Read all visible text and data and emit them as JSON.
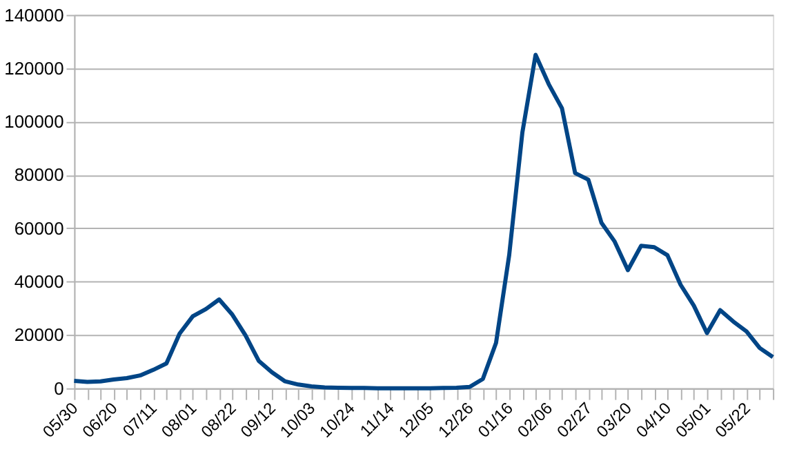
{
  "chart_data": {
    "type": "line",
    "categories": [
      "05/30",
      null,
      null,
      "06/20",
      null,
      null,
      "07/11",
      null,
      null,
      "08/01",
      null,
      null,
      "08/22",
      null,
      null,
      "09/12",
      null,
      null,
      "10/03",
      null,
      null,
      "10/24",
      null,
      null,
      "11/14",
      null,
      null,
      "12/05",
      null,
      null,
      "12/26",
      null,
      null,
      "01/16",
      null,
      null,
      "02/06",
      null,
      null,
      "02/27",
      null,
      null,
      "03/20",
      null,
      null,
      "04/10",
      null,
      null,
      "05/01",
      null,
      null,
      "05/22",
      null,
      null
    ],
    "series": [
      {
        "color": "#004586",
        "values": [
          2800,
          2400,
          2600,
          3300,
          3800,
          4800,
          6900,
          9300,
          20500,
          27000,
          29700,
          33300,
          27600,
          19800,
          10300,
          6000,
          2600,
          1400,
          700,
          300,
          200,
          100,
          100,
          0,
          0,
          0,
          0,
          0,
          100,
          200,
          500,
          3500,
          17000,
          50000,
          96000,
          125000,
          114000,
          105000,
          80700,
          78200,
          62000,
          55000,
          44300,
          53400,
          52900,
          49900,
          38800,
          31000,
          20700,
          29300,
          25000,
          21300,
          15100,
          11700
        ]
      }
    ],
    "ylim": [
      0,
      140000
    ],
    "yticks": [
      0,
      20000,
      40000,
      60000,
      80000,
      100000,
      120000,
      140000
    ],
    "grid": "y",
    "marker": "none",
    "line_style": "solid"
  }
}
